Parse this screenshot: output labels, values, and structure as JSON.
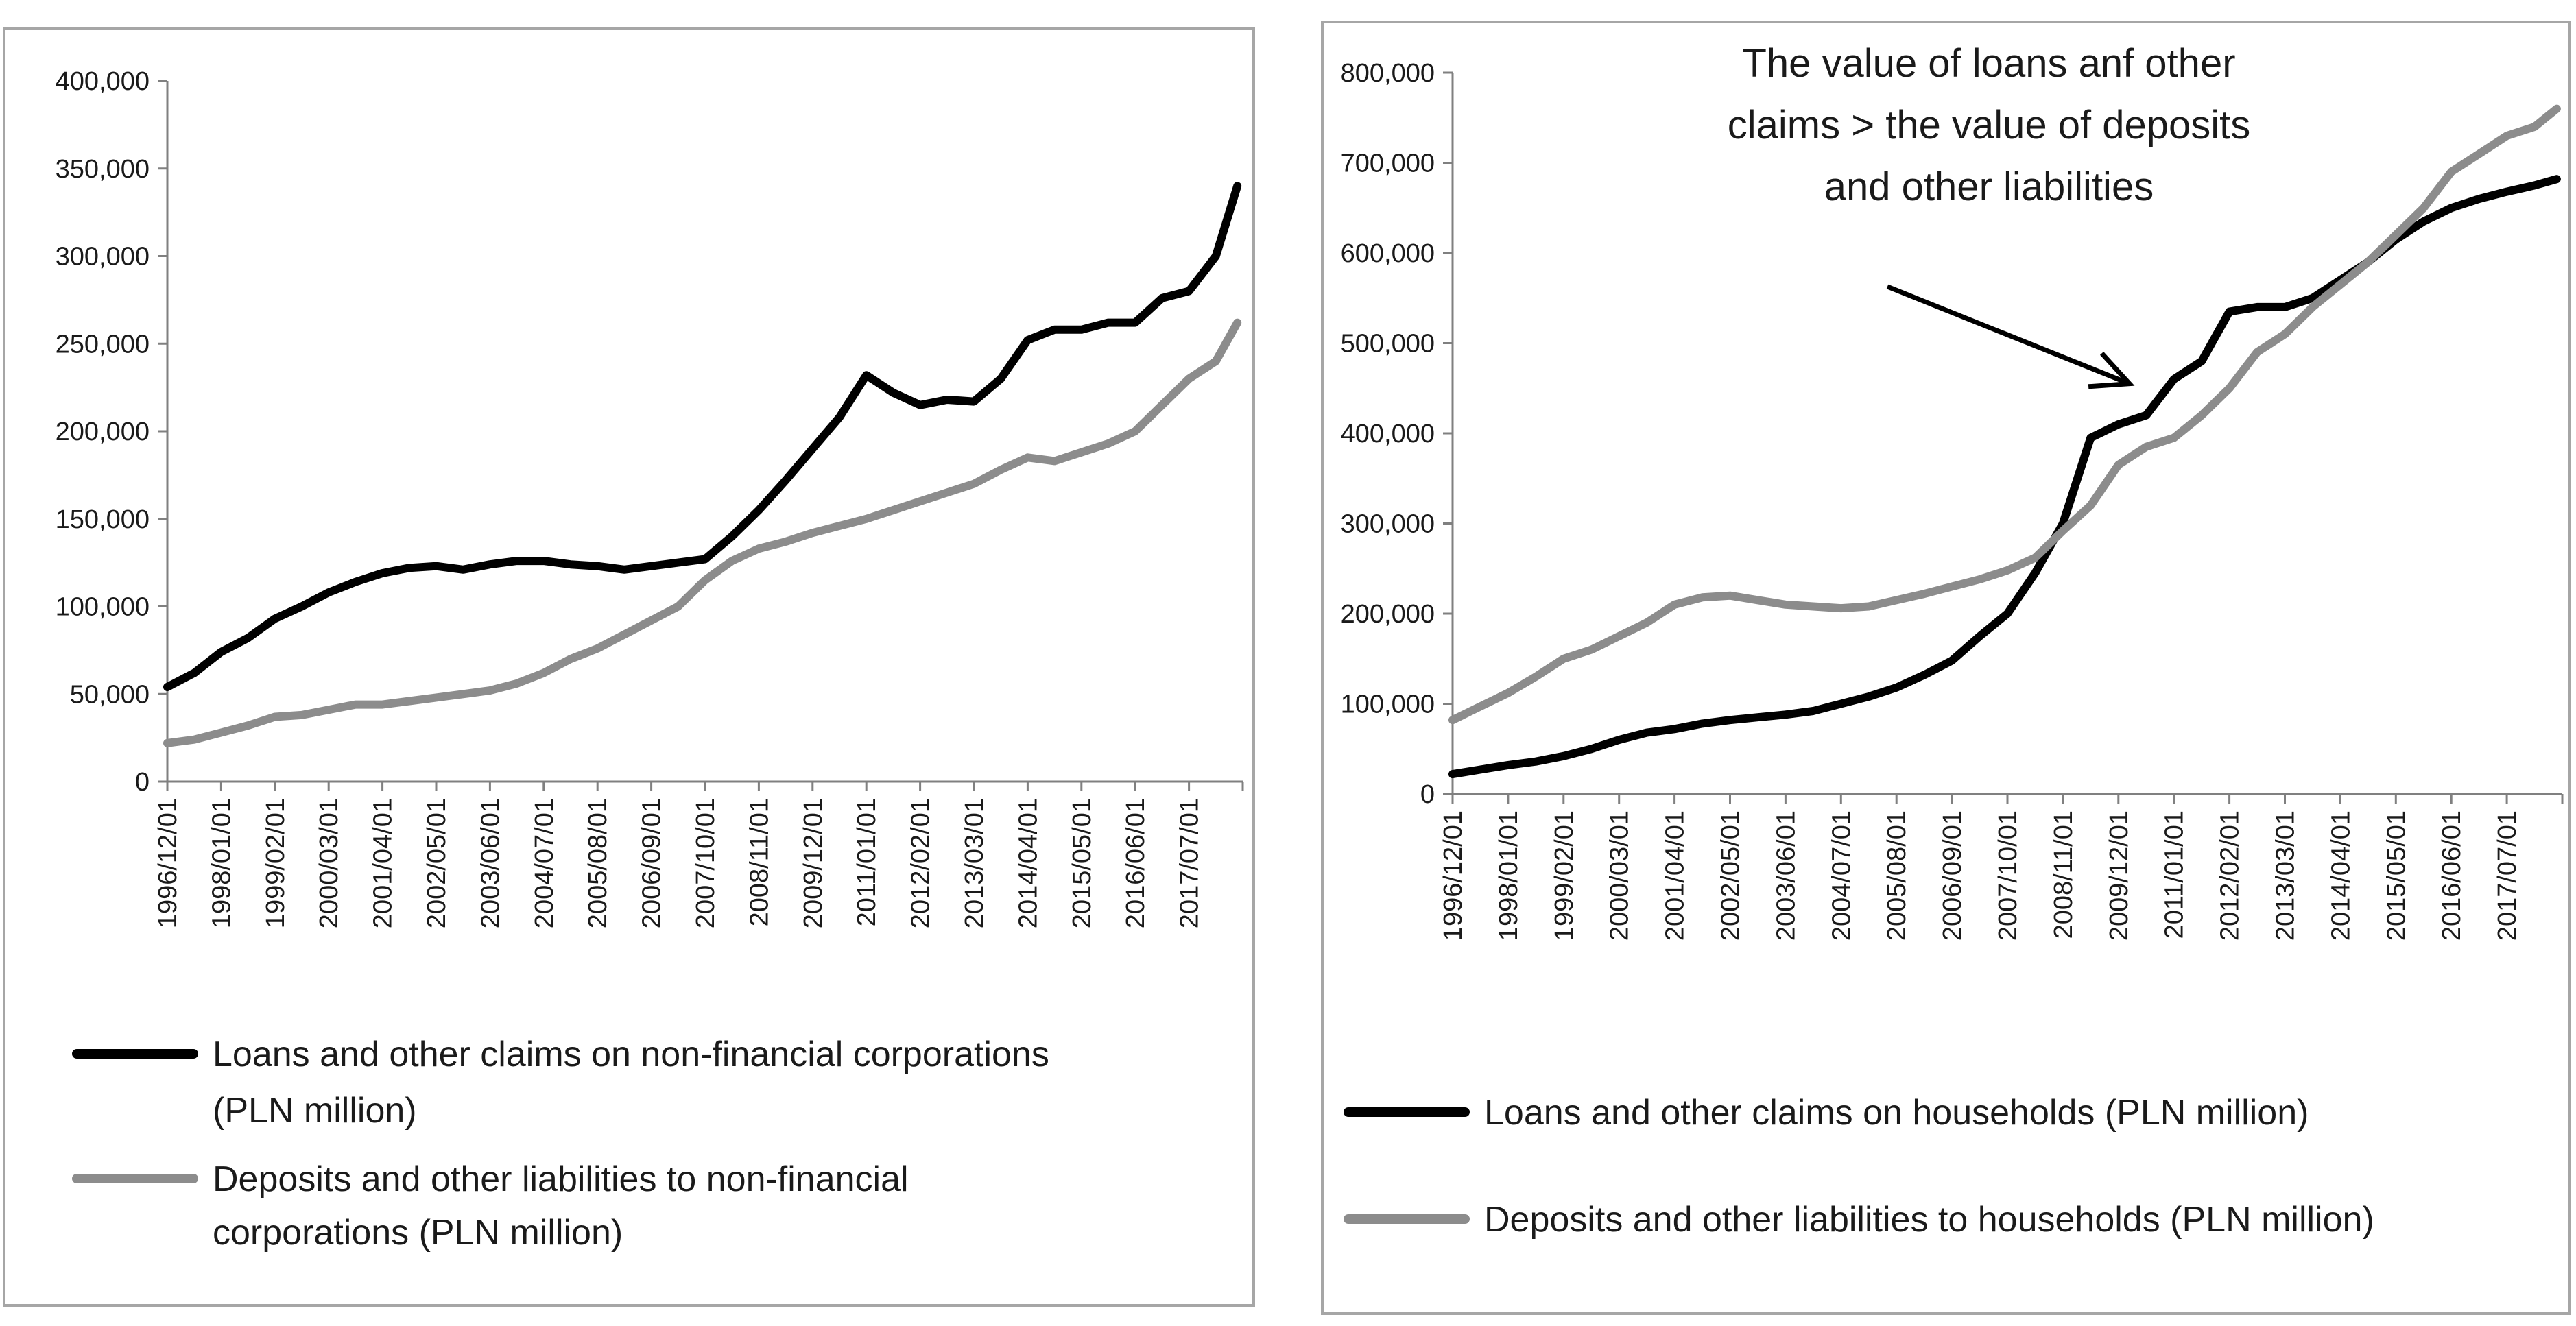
{
  "chart_data": [
    {
      "type": "line",
      "title": "",
      "xlabel": "",
      "ylabel": "",
      "ylim": [
        0,
        400000
      ],
      "y_ticks": [
        "0",
        "50,000",
        "100,000",
        "150,000",
        "200,000",
        "250,000",
        "300,000",
        "350,000",
        "400,000"
      ],
      "categories": [
        "1996/12/01",
        "1998/01/01",
        "1999/02/01",
        "2000/03/01",
        "2001/04/01",
        "2002/05/01",
        "2003/06/01",
        "2004/07/01",
        "2005/08/01",
        "2006/09/01",
        "2007/10/01",
        "2008/11/01",
        "2009/12/01",
        "2011/01/01",
        "2012/02/01",
        "2013/03/01",
        "2014/04/01",
        "2015/05/01",
        "2016/06/01",
        "2017/07/01"
      ],
      "legend": "bottom",
      "series": [
        {
          "name": "Loans and other claims on non-financial corporations (PLN million)",
          "color": "#000000",
          "x": [
            0,
            0.5,
            1,
            1.5,
            2,
            2.5,
            3,
            3.5,
            4,
            4.5,
            5,
            5.5,
            6,
            6.5,
            7,
            7.5,
            8,
            8.5,
            9,
            9.5,
            10,
            10.5,
            11,
            11.5,
            12,
            12.5,
            13,
            13.5,
            14,
            14.5,
            15,
            15.5,
            16,
            16.5,
            17,
            17.5,
            18,
            18.5,
            19,
            19.5,
            19.9
          ],
          "values": [
            54000,
            62000,
            74000,
            82000,
            93000,
            100000,
            108000,
            114000,
            119000,
            122000,
            123000,
            121000,
            124000,
            126000,
            126000,
            124000,
            123000,
            121000,
            123000,
            125000,
            127000,
            140000,
            155000,
            172000,
            190000,
            208000,
            232000,
            222000,
            215000,
            218000,
            217000,
            230000,
            252000,
            258000,
            258000,
            262000,
            262000,
            276000,
            280000,
            300000,
            340000
          ]
        },
        {
          "name": "Deposits and other liabilities to non-financial corporations (PLN million)",
          "color": "#8c8c8c",
          "x": [
            0,
            0.5,
            1,
            1.5,
            2,
            2.5,
            3,
            3.5,
            4,
            4.5,
            5,
            5.5,
            6,
            6.5,
            7,
            7.5,
            8,
            8.5,
            9,
            9.5,
            10,
            10.5,
            11,
            11.5,
            12,
            12.5,
            13,
            13.5,
            14,
            14.5,
            15,
            15.5,
            16,
            16.5,
            17,
            17.5,
            18,
            18.5,
            19,
            19.5,
            19.9
          ],
          "values": [
            22000,
            24000,
            28000,
            32000,
            37000,
            38000,
            41000,
            44000,
            44000,
            46000,
            48000,
            50000,
            52000,
            56000,
            62000,
            70000,
            76000,
            84000,
            92000,
            100000,
            115000,
            126000,
            133000,
            137000,
            142000,
            146000,
            150000,
            155000,
            160000,
            165000,
            170000,
            178000,
            185000,
            183000,
            188000,
            193000,
            200000,
            215000,
            230000,
            240000,
            262000
          ]
        }
      ]
    },
    {
      "type": "line",
      "title": "",
      "xlabel": "",
      "ylabel": "",
      "ylim": [
        0,
        800000
      ],
      "y_ticks": [
        "0",
        "100,000",
        "200,000",
        "300,000",
        "400,000",
        "500,000",
        "600,000",
        "700,000",
        "800,000"
      ],
      "categories": [
        "1996/12/01",
        "1998/01/01",
        "1999/02/01",
        "2000/03/01",
        "2001/04/01",
        "2002/05/01",
        "2003/06/01",
        "2004/07/01",
        "2005/08/01",
        "2006/09/01",
        "2007/10/01",
        "2008/11/01",
        "2009/12/01",
        "2011/01/01",
        "2012/02/01",
        "2013/03/01",
        "2014/04/01",
        "2015/05/01",
        "2016/06/01",
        "2017/07/01"
      ],
      "legend": "bottom",
      "annotation": {
        "lines": [
          "The value of  loans  anf other",
          "claims > the value of  deposits",
          "and other liabilities"
        ],
        "target_x": 12.2,
        "target_y": 455000
      },
      "series": [
        {
          "name": "Loans and other claims on households (PLN million)",
          "color": "#000000",
          "x": [
            0,
            0.5,
            1,
            1.5,
            2,
            2.5,
            3,
            3.5,
            4,
            4.5,
            5,
            5.5,
            6,
            6.5,
            7,
            7.5,
            8,
            8.5,
            9,
            9.5,
            10,
            10.5,
            11,
            11.5,
            12,
            12.5,
            13,
            13.5,
            14,
            14.5,
            15,
            15.5,
            16,
            16.5,
            17,
            17.5,
            18,
            18.5,
            19,
            19.5,
            19.9
          ],
          "values": [
            22000,
            27000,
            32000,
            36000,
            42000,
            50000,
            60000,
            68000,
            72000,
            78000,
            82000,
            85000,
            88000,
            92000,
            100000,
            108000,
            118000,
            132000,
            148000,
            175000,
            200000,
            245000,
            300000,
            395000,
            410000,
            420000,
            460000,
            480000,
            535000,
            540000,
            540000,
            550000,
            570000,
            590000,
            615000,
            635000,
            650000,
            660000,
            668000,
            675000,
            682000
          ]
        },
        {
          "name": "Deposits and other liabilities to households (PLN million)",
          "color": "#8c8c8c",
          "x": [
            0,
            0.5,
            1,
            1.5,
            2,
            2.5,
            3,
            3.5,
            4,
            4.5,
            5,
            5.5,
            6,
            6.5,
            7,
            7.5,
            8,
            8.5,
            9,
            9.5,
            10,
            10.5,
            11,
            11.5,
            12,
            12.5,
            13,
            13.5,
            14,
            14.5,
            15,
            15.5,
            16,
            16.5,
            17,
            17.5,
            18,
            18.5,
            19,
            19.5,
            19.9
          ],
          "values": [
            82000,
            97000,
            112000,
            130000,
            150000,
            160000,
            175000,
            190000,
            210000,
            218000,
            220000,
            215000,
            210000,
            208000,
            206000,
            208000,
            215000,
            222000,
            230000,
            238000,
            248000,
            262000,
            292000,
            320000,
            365000,
            385000,
            395000,
            420000,
            450000,
            490000,
            510000,
            540000,
            565000,
            590000,
            620000,
            650000,
            690000,
            710000,
            730000,
            740000,
            760000
          ]
        }
      ]
    }
  ]
}
